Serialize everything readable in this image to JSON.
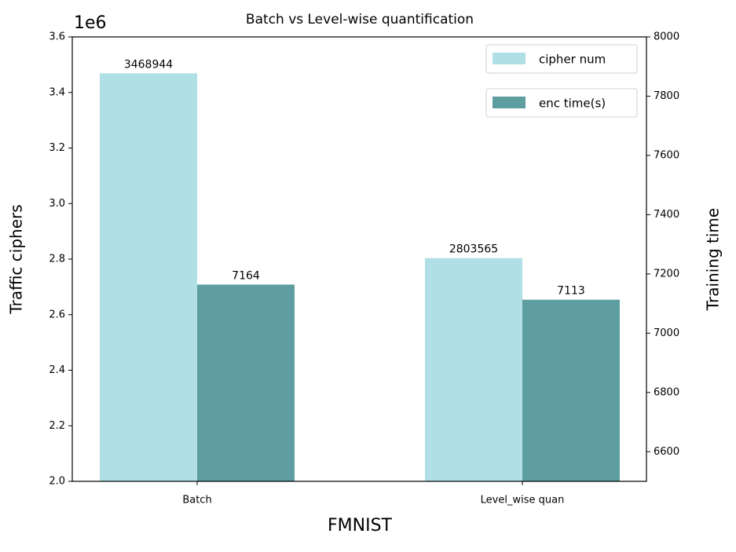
{
  "chart_data": {
    "type": "bar",
    "title": "Batch vs Level-wise quantification",
    "x_label": "FMNIST",
    "y_label": "Traffic ciphers",
    "y_offset_label": "1e6",
    "y2_label": "Training time",
    "categories": [
      "Batch",
      "Level_wise quan"
    ],
    "series": [
      {
        "name": "cipher num",
        "color": "#b0e0e6",
        "values": [
          3468944,
          2803565
        ]
      },
      {
        "name": "enc time(s)",
        "color": "#5f9ea0",
        "axis": "y2",
        "values": [
          7164,
          7113
        ]
      }
    ],
    "ylim": [
      2000000,
      3600000
    ],
    "yticks": [
      {
        "value": 2000000,
        "label": "2.0"
      },
      {
        "value": 2200000,
        "label": "2.2"
      },
      {
        "value": 2400000,
        "label": "2.4"
      },
      {
        "value": 2600000,
        "label": "2.6"
      },
      {
        "value": 2800000,
        "label": "2.8"
      },
      {
        "value": 3000000,
        "label": "3.0"
      },
      {
        "value": 3200000,
        "label": "3.2"
      },
      {
        "value": 3400000,
        "label": "3.4"
      },
      {
        "value": 3600000,
        "label": "3.6"
      }
    ],
    "y2lim": [
      6500,
      8000
    ],
    "y2ticks": [
      6600,
      6800,
      7000,
      7200,
      7400,
      7600,
      7800,
      8000
    ],
    "legend": "upper right",
    "grid": false
  }
}
